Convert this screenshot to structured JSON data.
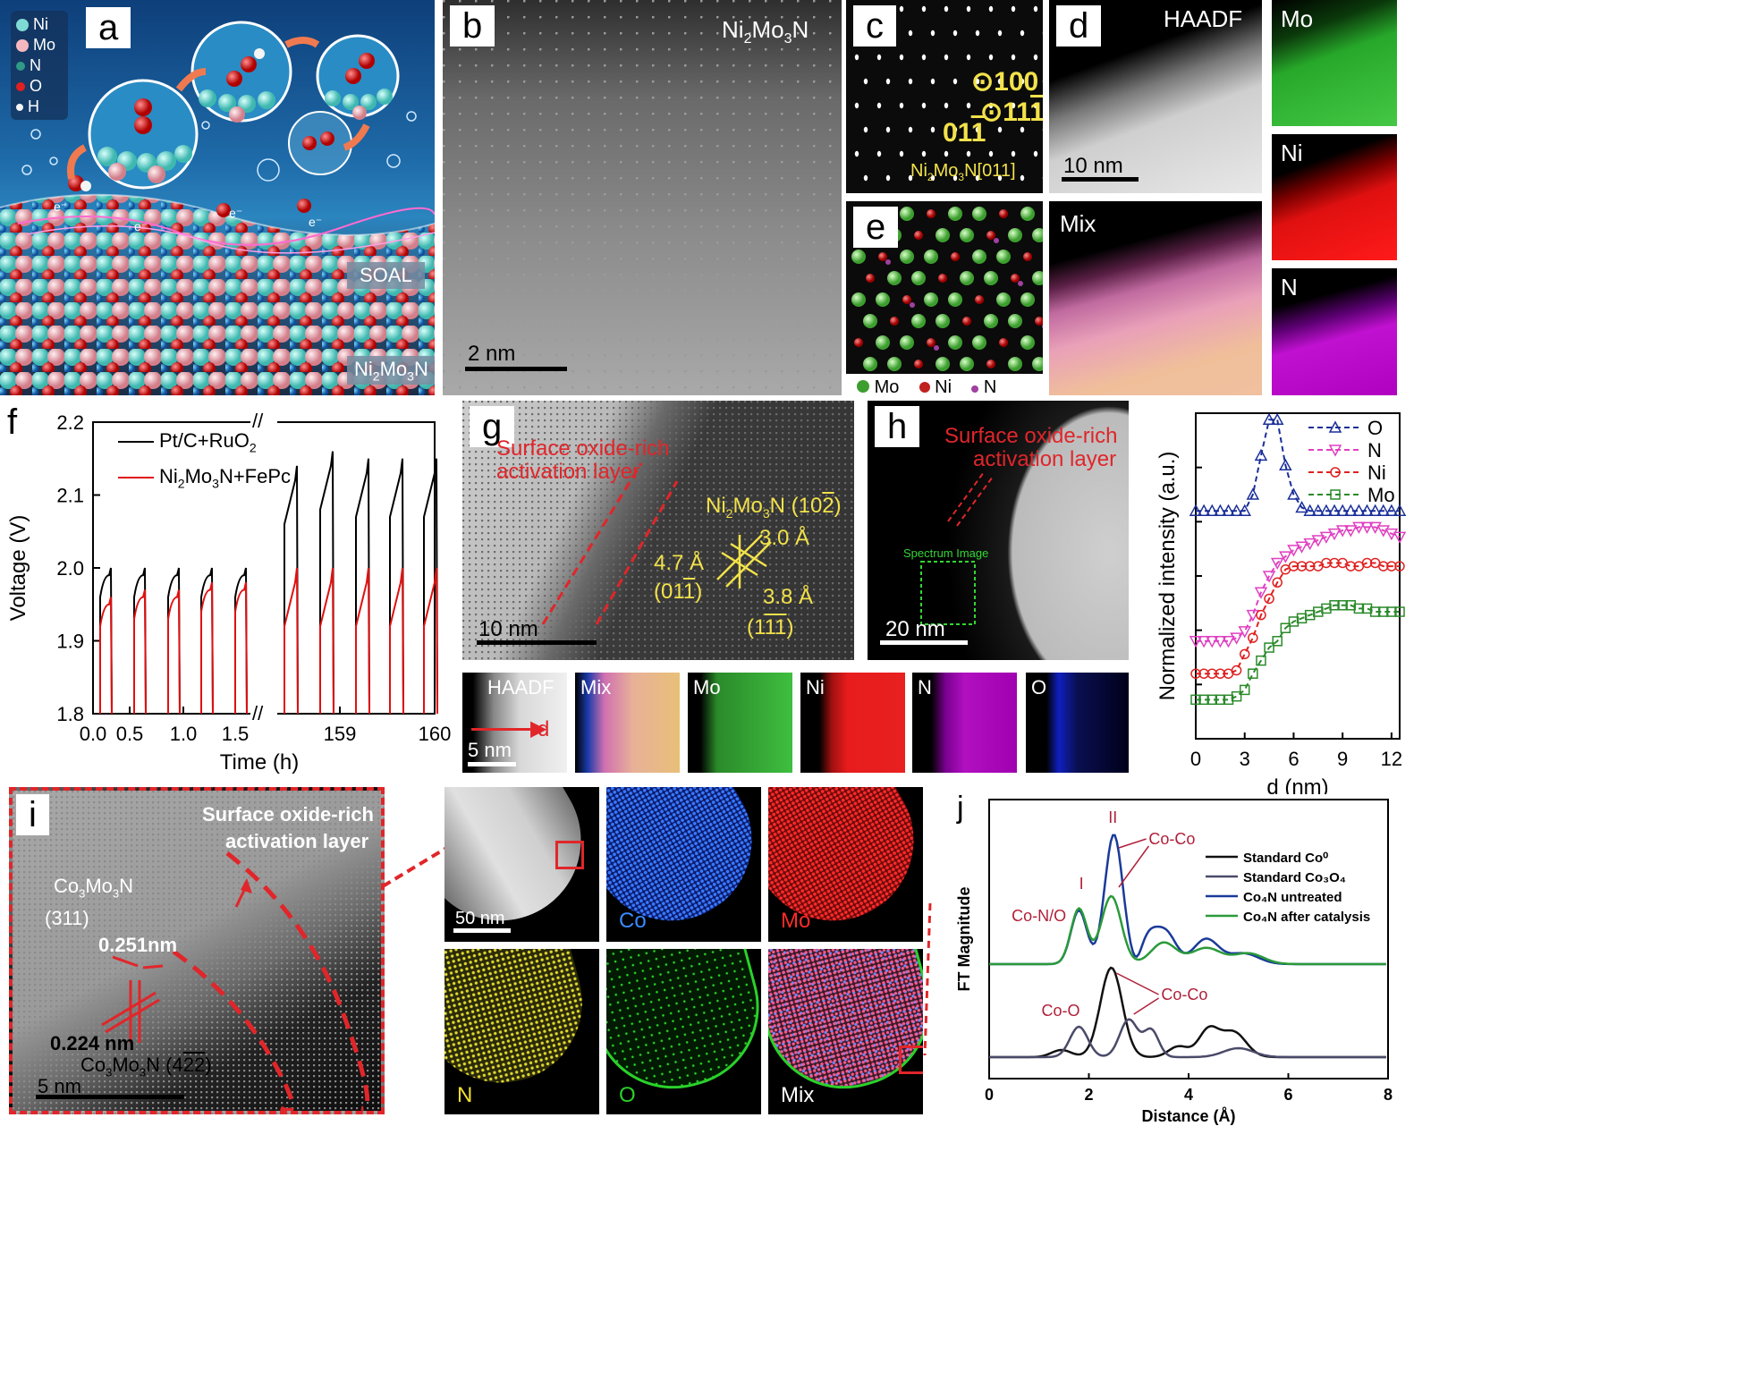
{
  "panel_a": {
    "label": "a",
    "legend": [
      {
        "name": "Ni",
        "color": "#7fdad5"
      },
      {
        "name": "Mo",
        "color": "#f6b8c0"
      },
      {
        "name": "N",
        "color": "#2f9a86"
      },
      {
        "name": "O",
        "color": "#e02020"
      },
      {
        "name": "H",
        "color": "#f4f4f4"
      }
    ],
    "electrons": [
      "e⁻",
      "e⁻",
      "e⁻",
      "e⁻"
    ],
    "soal": "SOAL",
    "bulk_main": "Ni",
    "bulk_sub1": "2",
    "bulk_mid": "Mo",
    "bulk_sub2": "3",
    "bulk_end": "N"
  },
  "panel_b": {
    "label": "b",
    "title_a": "Ni",
    "title_s1": "2",
    "title_b": "Mo",
    "title_s2": "3",
    "title_c": "N",
    "scale": "2 nm"
  },
  "panel_c": {
    "label": "c",
    "spot1": "100",
    "spot2": "11",
    "spot3": "01",
    "caption_a": "Ni",
    "caption_s1": "2",
    "caption_b": "Mo",
    "caption_s2": "3",
    "caption_c": "N[011]"
  },
  "panel_d": {
    "label": "d",
    "haadf": "HAADF",
    "scale": "10 nm",
    "mo": "Mo",
    "ni": "Ni",
    "n": "N",
    "mix": "Mix"
  },
  "panel_e": {
    "label": "e",
    "legend_mo": "Mo",
    "legend_ni": "Ni",
    "legend_n": "N"
  },
  "panel_f": {
    "label": "f",
    "legend_black": "Pt/C+RuO",
    "legend_black_sub": "2",
    "legend_red_a": "Ni",
    "legend_red_s1": "2",
    "legend_red_b": "Mo",
    "legend_red_s2": "3",
    "legend_red_c": "N+FePc",
    "colors": {
      "black": "#000000",
      "red": "#e01010"
    }
  },
  "chart_data": [
    {
      "type": "line",
      "panel": "f",
      "xlabel": "Time (h)",
      "ylabel": "Voltage (V)",
      "ylim": [
        1.8,
        2.2
      ],
      "x_ticks_left": [
        "0.0",
        "0.5",
        "1.0",
        "1.5"
      ],
      "x_ticks_right": [
        "159",
        "160"
      ],
      "y_ticks": [
        "1.8",
        "1.9",
        "2.0",
        "2.1",
        "2.2"
      ],
      "series": [
        {
          "name": "Pt/C+RuO2",
          "pulse_peaks_left": [
            2.0,
            2.0,
            2.0,
            2.0,
            2.0
          ],
          "pulse_peaks_right": [
            2.14,
            2.16,
            2.15,
            2.15,
            2.15,
            2.15
          ]
        },
        {
          "name": "Ni2Mo3N+FePc",
          "pulse_peaks_left": [
            1.96,
            1.97,
            1.97,
            1.98,
            1.98
          ],
          "pulse_peaks_right": [
            2.0,
            2.0,
            2.0,
            2.0,
            2.0,
            2.0
          ]
        }
      ]
    },
    {
      "type": "line",
      "panel": "h-profile",
      "xlabel": "d (nm)",
      "ylabel": "Normalized intensity (a.u.)",
      "x_ticks": [
        "0",
        "3",
        "6",
        "9",
        "12"
      ],
      "xlim": [
        0,
        12.5
      ],
      "series": [
        {
          "name": "O",
          "color": "#1a2f9a",
          "x": [
            0,
            0.5,
            1,
            1.5,
            2,
            2.5,
            3,
            3.5,
            4,
            4.5,
            5,
            5.5,
            6,
            6.5,
            7,
            7.5,
            8,
            8.5,
            9,
            9.5,
            10,
            10.5,
            11,
            11.5,
            12,
            12.5
          ],
          "y": [
            0.7,
            0.7,
            0.7,
            0.7,
            0.7,
            0.7,
            0.7,
            0.75,
            0.87,
            0.98,
            0.98,
            0.84,
            0.75,
            0.71,
            0.7,
            0.7,
            0.7,
            0.7,
            0.7,
            0.7,
            0.7,
            0.7,
            0.7,
            0.7,
            0.7,
            0.7
          ]
        },
        {
          "name": "N",
          "color": "#e040c0",
          "x": [
            0,
            0.5,
            1,
            1.5,
            2,
            2.5,
            3,
            3.5,
            4,
            4.5,
            5,
            5.5,
            6,
            6.5,
            7,
            7.5,
            8,
            8.5,
            9,
            9.5,
            10,
            10.5,
            11,
            11.5,
            12,
            12.5
          ],
          "y": [
            0.3,
            0.3,
            0.3,
            0.3,
            0.3,
            0.31,
            0.33,
            0.38,
            0.45,
            0.5,
            0.54,
            0.56,
            0.58,
            0.59,
            0.6,
            0.61,
            0.62,
            0.63,
            0.64,
            0.64,
            0.65,
            0.65,
            0.65,
            0.64,
            0.63,
            0.62
          ]
        },
        {
          "name": "Ni",
          "color": "#e02020",
          "x": [
            0,
            0.5,
            1,
            1.5,
            2,
            2.5,
            3,
            3.5,
            4,
            4.5,
            5,
            5.5,
            6,
            6.5,
            7,
            7.5,
            8,
            8.5,
            9,
            9.5,
            10,
            10.5,
            11,
            11.5,
            12,
            12.5
          ],
          "y": [
            0.2,
            0.2,
            0.2,
            0.2,
            0.2,
            0.21,
            0.26,
            0.31,
            0.38,
            0.43,
            0.48,
            0.52,
            0.53,
            0.53,
            0.53,
            0.53,
            0.54,
            0.54,
            0.54,
            0.53,
            0.53,
            0.54,
            0.54,
            0.53,
            0.53,
            0.53
          ]
        },
        {
          "name": "Mo",
          "color": "#2a8a2a",
          "x": [
            0,
            0.5,
            1,
            1.5,
            2,
            2.5,
            3,
            3.5,
            4,
            4.5,
            5,
            5.5,
            6,
            6.5,
            7,
            7.5,
            8,
            8.5,
            9,
            9.5,
            10,
            10.5,
            11,
            11.5,
            12,
            12.5
          ],
          "y": [
            0.12,
            0.12,
            0.12,
            0.12,
            0.12,
            0.13,
            0.15,
            0.2,
            0.24,
            0.28,
            0.3,
            0.34,
            0.36,
            0.37,
            0.38,
            0.39,
            0.4,
            0.41,
            0.41,
            0.41,
            0.4,
            0.4,
            0.39,
            0.39,
            0.39,
            0.39
          ]
        }
      ]
    },
    {
      "type": "line",
      "panel": "j",
      "xlabel": "Distance (Å)",
      "ylabel": "FT Magnitude",
      "xlim": [
        0,
        8
      ],
      "x_ticks": [
        "0",
        "2",
        "4",
        "6",
        "8"
      ],
      "series": [
        {
          "name": "Standard Co⁰",
          "color": "#111111"
        },
        {
          "name": "Standard Co₃O₄",
          "color": "#4a4a6a"
        },
        {
          "name": "Co₄N untreated",
          "color": "#1a3a9a"
        },
        {
          "name": "Co₄N after catalysis",
          "color": "#2a9a3a"
        }
      ]
    }
  ],
  "panel_g": {
    "label": "g",
    "layer_line1": "Surface oxide-rich",
    "layer_line2": "activation layer",
    "phase_a": "Ni",
    "phase_s1": "2",
    "phase_b": "Mo",
    "phase_s2": "3",
    "phase_c": "N (10",
    "phase_bar": "2",
    "phase_end": ")",
    "d1": "3.0 Å",
    "d2": "4.7 Å",
    "d3": "3.8 Å",
    "hkl1": "(01",
    "hkl1_bar": "1",
    "hkl1_end": ")",
    "hkl2": "(1",
    "hkl2_bar": "11",
    "hkl2_end": ")",
    "scale": "10 nm"
  },
  "panel_h": {
    "label": "h",
    "layer_line1": "Surface oxide-rich",
    "layer_line2": "activation layer",
    "spectrum": "Spectrum Image",
    "scale": "20 nm"
  },
  "maps_row": {
    "haadf": "HAADF",
    "arrow": "d",
    "scale": "5 nm",
    "mix": "Mix",
    "mo": "Mo",
    "ni": "Ni",
    "n": "N",
    "o": "O"
  },
  "panel_i": {
    "label": "i",
    "layer_line1": "Surface oxide-rich",
    "layer_line2": "activation layer",
    "phase1_a": "Co",
    "phase1_s1": "3",
    "phase1_b": "Mo",
    "phase1_s2": "3",
    "phase1_c": "N",
    "hkl1": "(311)",
    "spacing1": "0.251nm",
    "spacing2": "0.224 nm",
    "phase2_a": "Co",
    "phase2_s1": "3",
    "phase2_b": "Mo",
    "phase2_s2": "3",
    "phase2_c": "N",
    "hkl2": "(4",
    "hkl2_bar": "22",
    "hkl2_end": ")",
    "scale": "5 nm"
  },
  "eds_grid": {
    "scale": "50 nm",
    "co": "Co",
    "mo": "Mo",
    "n": "N",
    "o": "O",
    "mix": "Mix"
  },
  "panel_j": {
    "label": "j",
    "peak1": "I",
    "peak2": "II",
    "co_no": "Co-N/O",
    "co_co_top": "Co-Co",
    "co_co_bottom": "Co-Co",
    "co_o": "Co-O",
    "legend": [
      "Standard Co⁰",
      "Standard Co₃O₄",
      "Co₄N untreated",
      "Co₄N after catalysis"
    ]
  }
}
